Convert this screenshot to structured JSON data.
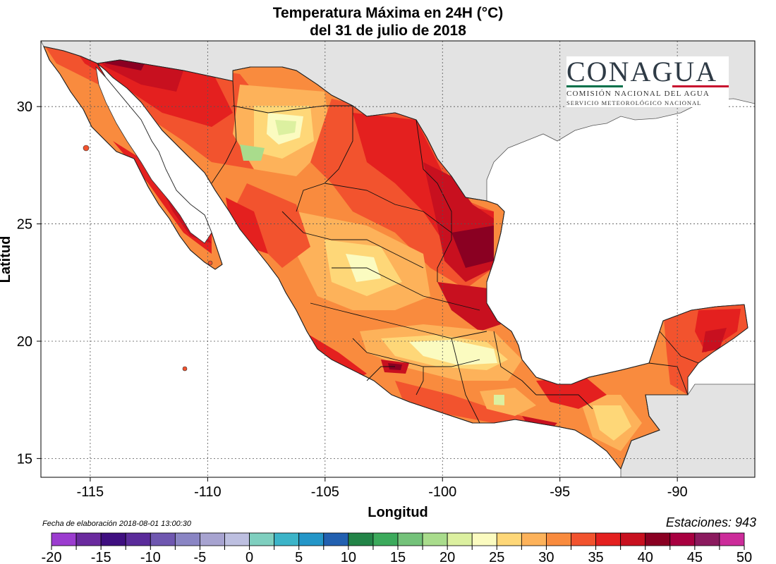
{
  "title": {
    "line1": "Temperatura Máxima en 24H (°C)",
    "line2": "del  31 de julio de 2018"
  },
  "axes": {
    "xlabel": "Longitud",
    "ylabel": "Latitud",
    "x_ticks": [
      -115,
      -110,
      -105,
      -100,
      -95,
      -90
    ],
    "x_tick_labels": [
      "-115",
      "-110",
      "-105",
      "-100",
      "-95",
      "-90"
    ],
    "y_ticks": [
      30,
      25,
      20,
      15
    ],
    "y_tick_labels": [
      "30",
      "25",
      "20",
      "15"
    ],
    "xlim": [
      -117.1,
      -86.7
    ],
    "ylim": [
      14.2,
      32.8
    ],
    "grid": true
  },
  "logo": {
    "name": "CONAGUA",
    "subtitle1": "COMISIÓN NACIONAL DEL AGUA",
    "subtitle2": "SERVICIO METEOROLÓGICO NACIONAL",
    "colors": [
      "#00704a",
      "#ffffff",
      "#c8102e"
    ]
  },
  "footer": {
    "generated": "Fecha de elaboración 2018-08-01 13:00:30",
    "stations": "Estaciones:  943"
  },
  "legend": {
    "units": "°C",
    "tick_labels": [
      "-20",
      "-15",
      "-10",
      "-5",
      "0",
      "5",
      "10",
      "15",
      "20",
      "25",
      "30",
      "35",
      "40",
      "45",
      "50"
    ],
    "bins": [
      -20,
      -17.5,
      -15,
      -12.5,
      -10,
      -7.5,
      -5,
      -2.5,
      0,
      2.5,
      5,
      7.5,
      10,
      12.5,
      15,
      17.5,
      20,
      22.5,
      25,
      27.5,
      30,
      32.5,
      35,
      37.5,
      40,
      42.5,
      45,
      47.5,
      50
    ],
    "colors": [
      "#9b3ccf",
      "#6a2a9e",
      "#3f0f80",
      "#5a2b9a",
      "#6f57b0",
      "#8a85c4",
      "#a7a3d0",
      "#bdbfe0",
      "#7fcfbf",
      "#3cb4c8",
      "#2496c8",
      "#2260b0",
      "#238448",
      "#3caa5c",
      "#74c27a",
      "#a9dc8c",
      "#dcf0a0",
      "#fbfbc0",
      "#fed778",
      "#fdb25a",
      "#f98b3e",
      "#f2532e",
      "#e4201f",
      "#c8101f",
      "#8a0022",
      "#a80040",
      "#8b1a5e",
      "#cc2c9a"
    ]
  },
  "map_colors": {
    "ocean": "#ffffff",
    "neighbor_land": "#e3e3e3",
    "t_30": "#f98b3e",
    "t_325": "#f2532e",
    "t_35": "#e4201f",
    "t_375": "#c8101f",
    "t_40": "#8a0022",
    "t_275": "#fdb25a",
    "t_25": "#fed778",
    "t_225": "#fbfbc0",
    "t_20": "#dcf0a0",
    "t_175": "#a9dc8c",
    "t_15": "#74c27a"
  }
}
